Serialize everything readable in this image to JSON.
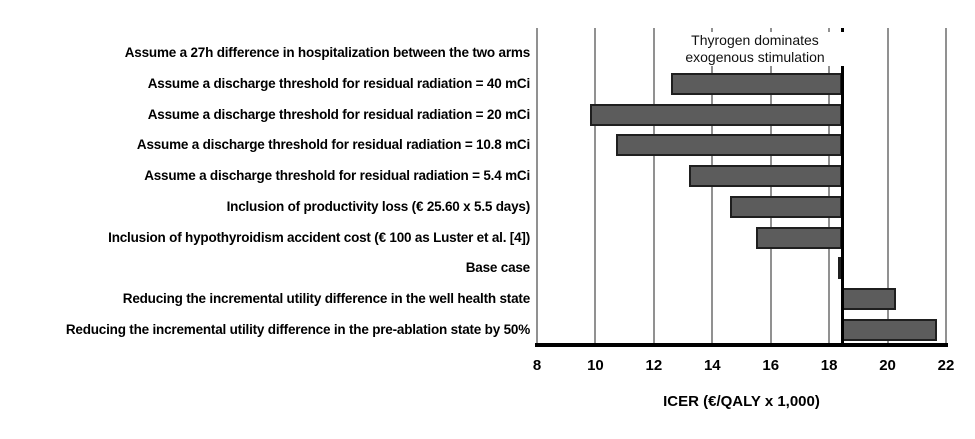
{
  "chart_data": {
    "type": "bar",
    "variant": "tornado-sensitivity",
    "title": "",
    "xlabel": "ICER (€/QALY x 1,000)",
    "ylabel": "",
    "xlim": [
      8,
      22
    ],
    "x_ticks": [
      8,
      10,
      12,
      14,
      16,
      18,
      20,
      22
    ],
    "grid": "vertical-gridlines-on",
    "base_value": 18.45,
    "categories": [
      "Assume a 27h difference in hospitalization between the two arms",
      "Assume a discharge threshold for residual radiation = 40 mCi",
      "Assume a discharge threshold for residual radiation = 20 mCi",
      "Assume a discharge threshold for residual radiation = 10.8 mCi",
      "Assume a discharge threshold for residual radiation = 5.4 mCi",
      "Inclusion of productivity loss (€ 25.60 x 5.5 days)",
      "Inclusion of hypothyroidism accident cost (€ 100 as Luster et al. [4])",
      "Base case",
      "Reducing the incremental utility difference in the well health state",
      "Reducing the incremental utility difference in the pre-ablation state by 50%"
    ],
    "values": [
      null,
      12.6,
      9.8,
      10.7,
      13.2,
      14.6,
      15.5,
      18.3,
      20.3,
      21.7
    ],
    "bars_note": "each bar spans from its value to the base_value line; first category has no bar (dominance annotation instead)",
    "annotation": {
      "line1": "Thyrogen dominates",
      "line2": "exogenous stimulation"
    },
    "colors": {
      "bar_fill": "#5c5c5c",
      "bar_border": "#1f1f1f",
      "gridline": "#919191",
      "base_line": "#000000",
      "axis_line": "#000000",
      "background": "#ffffff"
    }
  }
}
